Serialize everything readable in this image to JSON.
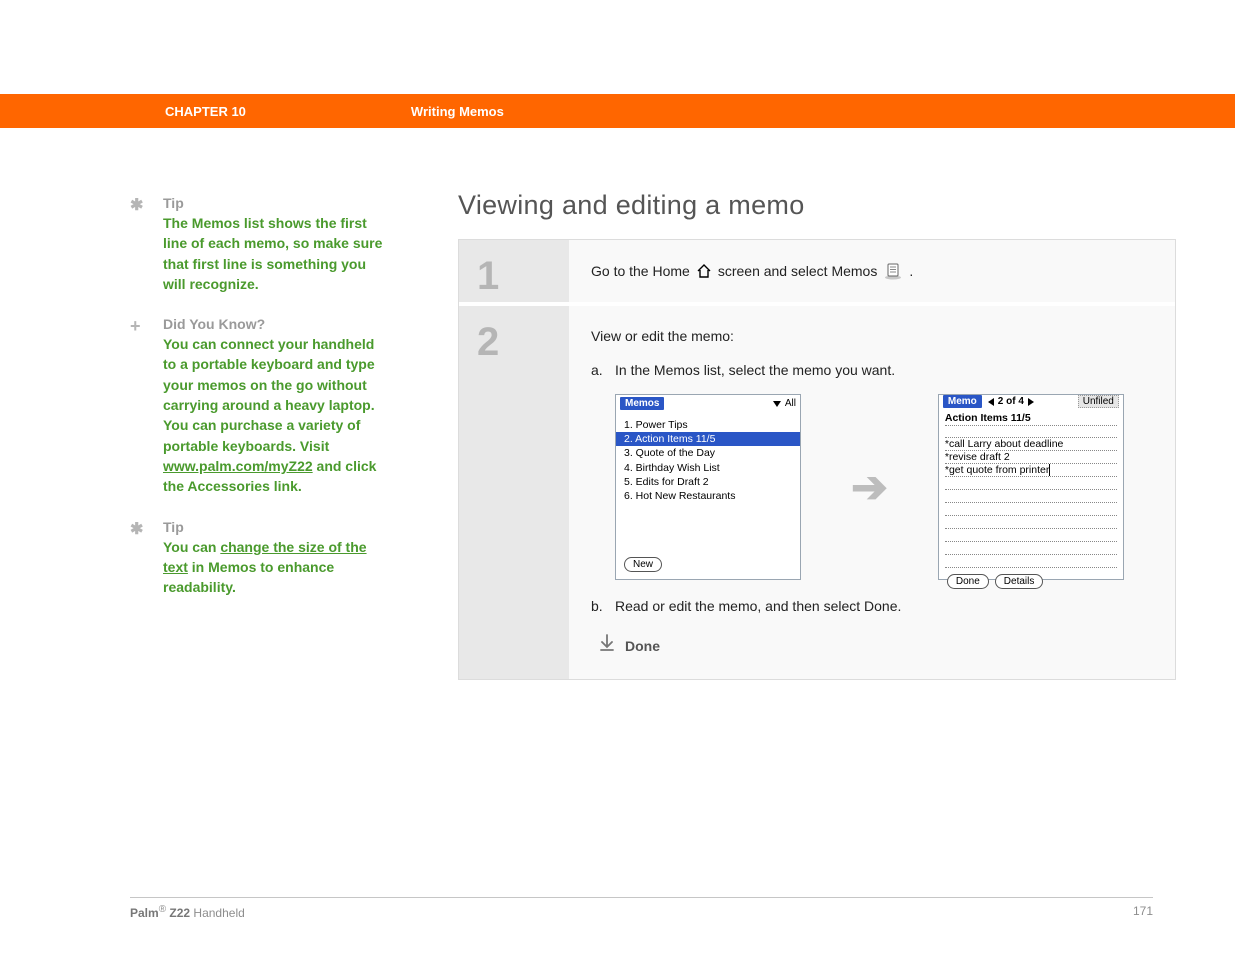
{
  "colors": {
    "header_bg": "#ff6600",
    "accent_green": "#4a9a2d",
    "gray_text": "#9a9a9a",
    "step_num_bg": "#e8e8e8",
    "step_body_bg": "#f9f9f9",
    "screen_blue": "#2a56c6"
  },
  "header": {
    "chapter": "CHAPTER 10",
    "section": "Writing Memos"
  },
  "sidebar": {
    "tip1": {
      "icon": "✱",
      "heading": "Tip",
      "body": "The Memos list shows the first line of each memo, so make sure that first line is something you will recognize."
    },
    "dyk": {
      "icon": "+",
      "heading": "Did You Know?",
      "body_before_link": "You can connect your handheld to a portable keyboard and type your memos on the go without carrying around a heavy laptop. You can purchase a variety of portable keyboards. Visit ",
      "link": "www.palm.com/myZ22",
      "body_after_link": " and click the Accessories link."
    },
    "tip2": {
      "icon": "✱",
      "heading": "Tip",
      "body_before": "You can ",
      "link": "change the size of the text",
      "body_after": " in Memos to enhance readability."
    }
  },
  "main": {
    "title": "Viewing and editing a memo",
    "step1": {
      "num": "1",
      "before_home": "Go to the Home",
      "after_home_before_memos": "screen and select Memos",
      "after_memos": "."
    },
    "step2": {
      "num": "2",
      "intro": "View or edit the memo:",
      "sub_a_letter": "a.",
      "sub_a_text": "In the Memos list, select the memo you want.",
      "sub_b_letter": "b.",
      "sub_b_text": "Read or edit the memo, and then select Done.",
      "done_label": "Done"
    },
    "screens": {
      "list": {
        "title": "Memos",
        "category": "All",
        "items": [
          "1. Power Tips",
          "2. Action Items 11/5",
          "3. Quote of the Day",
          "4. Birthday Wish List",
          "5. Edits for Draft 2",
          "6. Hot New Restaurants"
        ],
        "selected_index": 1,
        "footer_buttons": [
          "New"
        ]
      },
      "detail": {
        "title": "Memo",
        "counter": "2 of 4",
        "category": "Unfiled",
        "memo_title": "Action Items 11/5",
        "lines": [
          "*call Larry about deadline",
          "*revise draft 2",
          "*get quote from printer"
        ],
        "blank_lines": 7,
        "footer_buttons": [
          "Done",
          "Details"
        ]
      }
    }
  },
  "footer": {
    "brand": "Palm",
    "reg": "®",
    "model": " Z22",
    "suffix": " Handheld",
    "page": "171"
  }
}
